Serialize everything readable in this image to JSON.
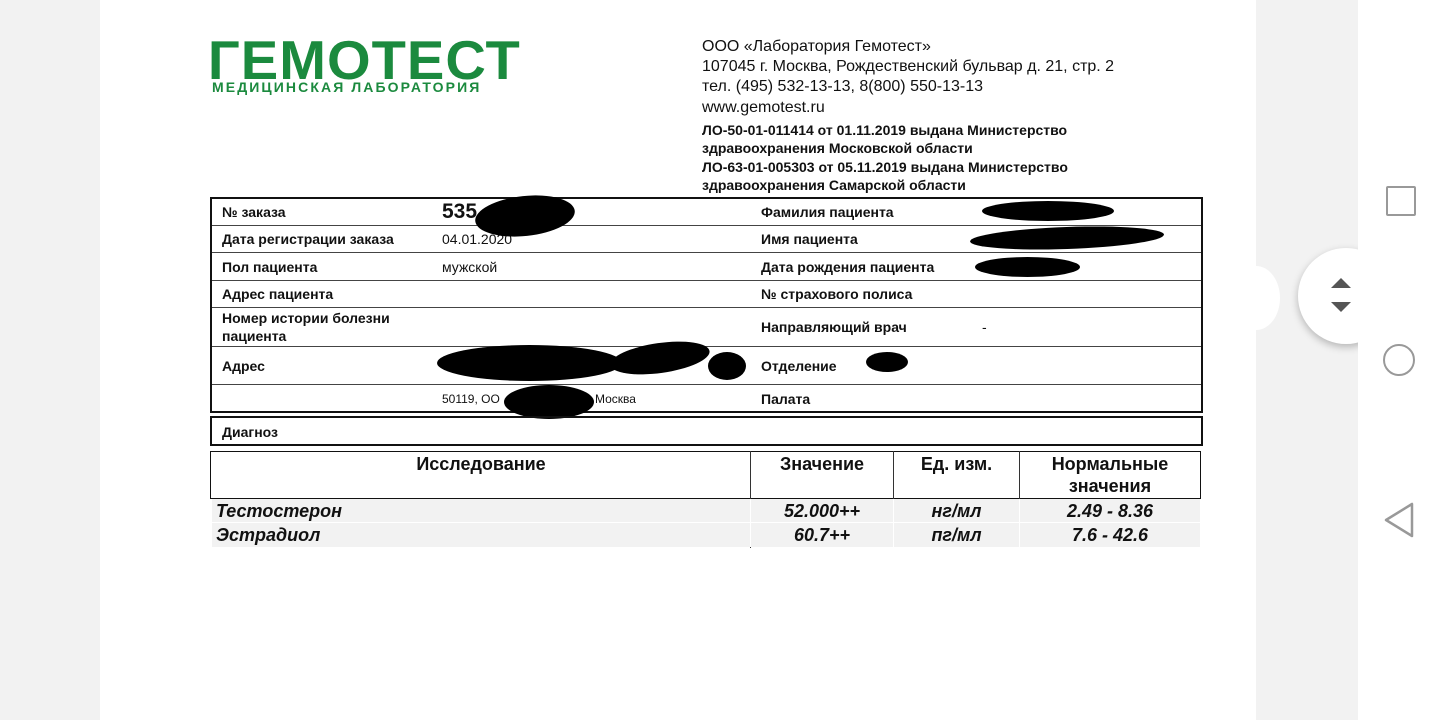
{
  "logo": {
    "name": "ГЕМОТЕСТ",
    "subtitle": "МЕДИЦИНСКАЯ ЛАБОРАТОРИЯ",
    "color": "#1b8a3e"
  },
  "header": {
    "lines": [
      "ООО «Лаборатория Гемотест»",
      "107045 г. Москва, Рождественский бульвар д. 21, стр. 2",
      "тел. (495) 532-13-13, 8(800) 550-13-13",
      "www.gemotest.ru"
    ],
    "license_lines": [
      "ЛО-50-01-011414 от 01.11.2019 выдана Министерство",
      "здравоохранения Московской области",
      "ЛО-63-01-005303 от 05.11.2019 выдана Министерство",
      "здравоохранения Самарской области"
    ]
  },
  "order": {
    "order_no_label": "№ заказа",
    "order_no_visible": "535",
    "reg_date_label": "Дата регистрации заказа",
    "reg_date": "04.01.2020",
    "sex_label": "Пол пациента",
    "sex": "мужской",
    "patient_address_label": "Адрес пациента",
    "history_label_1": "Номер истории болезни",
    "history_label_2": "пациента",
    "address_label": "Адрес",
    "address_line2_start": "50119, ОО",
    "address_line2_end": "Москва",
    "surname_label": "Фамилия пациента",
    "name_label": "Имя пациента",
    "dob_label": "Дата рождения пациента",
    "policy_label": "№ страхового полиса",
    "doctor_label": "Направляющий врач",
    "doctor": "-",
    "department_label": "Отделение",
    "ward_label": "Палата",
    "diagnosis_label": "Диагноз"
  },
  "results": {
    "headers": [
      "Исследование",
      "Значение",
      "Ед. изм.",
      "Нормальные значения"
    ],
    "rows": [
      {
        "test": "Тестостерон",
        "value": "52.000++",
        "unit": "нг/мл",
        "range": "2.49 - 8.36"
      },
      {
        "test": "Эстрадиол",
        "value": "60.7++",
        "unit": "пг/мл",
        "range": "7.6 - 42.6"
      }
    ]
  },
  "controls": {
    "scroll_icon": "up-down-arrows-icon",
    "nav": [
      "recents-square-icon",
      "home-circle-icon",
      "back-triangle-icon"
    ]
  }
}
